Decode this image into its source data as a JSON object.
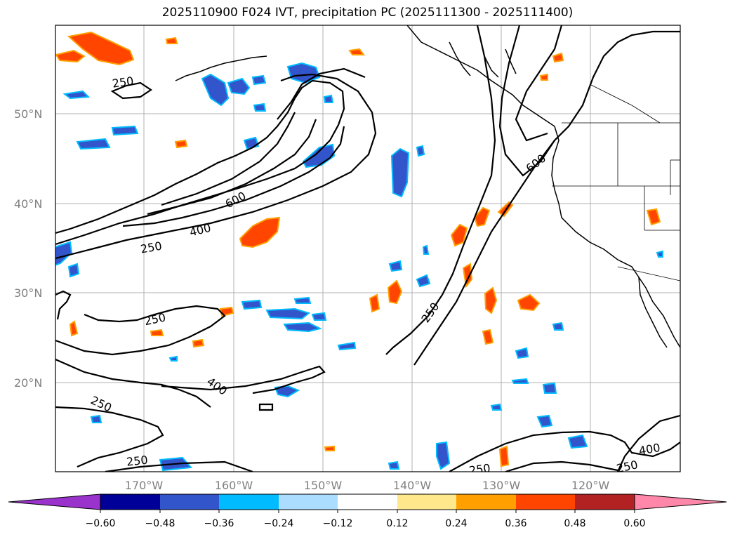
{
  "title": "2025110900 F024 IVT, precipitation PC (2025111300 - 2025111400)",
  "latitudes": [
    "50°N",
    "40°N",
    "30°N",
    "20°N"
  ],
  "longitudes": [
    "170°W",
    "160°W",
    "150°W",
    "140°W",
    "130°W",
    "120°W"
  ],
  "contour_labels": [
    {
      "text": "250"
    },
    {
      "text": "600"
    },
    {
      "text": "400"
    },
    {
      "text": "250"
    },
    {
      "text": "250"
    },
    {
      "text": "400"
    },
    {
      "text": "250"
    },
    {
      "text": "250"
    },
    {
      "text": "600"
    },
    {
      "text": "250"
    },
    {
      "text": "250"
    },
    {
      "text": "400"
    },
    {
      "text": "250"
    }
  ],
  "colorbar": {
    "ticks": [
      "−0.60",
      "−0.48",
      "−0.36",
      "−0.24",
      "−0.12",
      "0.12",
      "0.24",
      "0.36",
      "0.48",
      "0.60"
    ],
    "colors": [
      "#9933cc",
      "#000099",
      "#3355cc",
      "#00bbff",
      "#aaddff",
      "#ffffff",
      "#ffe88c",
      "#ffa000",
      "#ff4500",
      "#b22222",
      "#ff88aa"
    ]
  },
  "colors": {
    "positive_light": "#ffe88c",
    "positive_mid": "#ffa000",
    "positive_strong": "#ff4500",
    "negative_light": "#aaddff",
    "negative_mid": "#00bbff",
    "negative_strong": "#3355cc",
    "negative_deep": "#000099"
  }
}
